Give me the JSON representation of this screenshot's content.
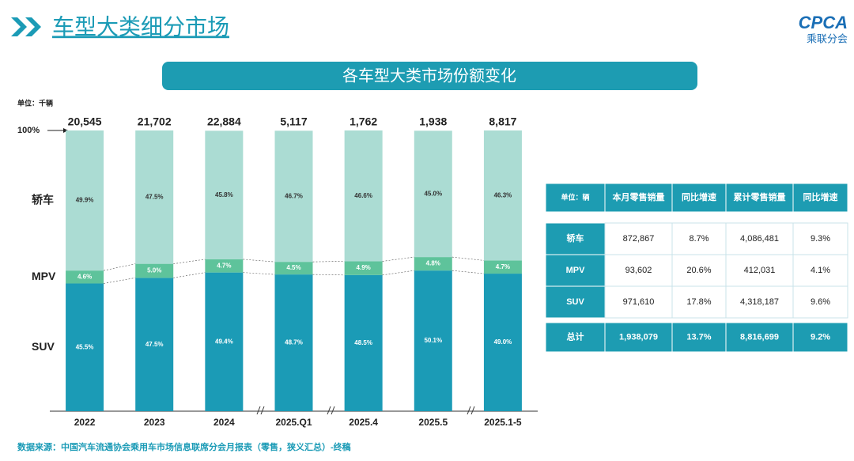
{
  "header": {
    "title": "车型大类细分市场",
    "logo": "CPCA",
    "logo_sub": "乘联分会"
  },
  "chart_data": {
    "type": "stacked-bar",
    "title": "各车型大类市场份额变化",
    "unit": "单位：千辆",
    "categories": [
      "2022",
      "2023",
      "2024",
      "2025.Q1",
      "2025.4",
      "2025.5",
      "2025.1-5"
    ],
    "ylim": [
      0,
      100
    ],
    "yticks": [
      {
        "value": 100,
        "label": "100%"
      }
    ],
    "totals": {
      "values": [
        20545,
        21702,
        22884,
        5117,
        1762,
        1938,
        8817
      ],
      "value_labels": [
        "20,545",
        "21,702",
        "22,884",
        "5,117",
        "1,762",
        "1,938",
        "8,817"
      ]
    },
    "series": [
      {
        "name": "SUV",
        "color": "#1b9bb6",
        "values": [
          45.5,
          47.5,
          49.4,
          48.7,
          48.5,
          50.1,
          49.0
        ],
        "value_labels": [
          "45.5%",
          "47.5%",
          "49.4%",
          "48.7%",
          "48.5%",
          "50.1%",
          "49.0%"
        ]
      },
      {
        "name": "MPV",
        "color": "#5ec39b",
        "values": [
          4.6,
          5.0,
          4.7,
          4.5,
          4.9,
          4.8,
          4.7
        ],
        "value_labels": [
          "4.6%",
          "5.0%",
          "4.7%",
          "4.5%",
          "4.9%",
          "4.8%",
          "4.7%"
        ]
      },
      {
        "name": "轿车",
        "color": "#abdcd3",
        "values": [
          49.9,
          47.5,
          45.8,
          46.7,
          46.6,
          45.0,
          46.3
        ],
        "value_labels": [
          "49.9%",
          "47.5%",
          "45.8%",
          "46.7%",
          "46.6%",
          "45.0%",
          "46.3%"
        ]
      }
    ]
  },
  "table": {
    "header": [
      "单位：辆",
      "本月零售销量",
      "同比增速",
      "累计零售销量",
      "同比增速"
    ],
    "rows": [
      [
        "轿车",
        "872,867",
        "8.7%",
        "4,086,481",
        "9.3%"
      ],
      [
        "MPV",
        "93,602",
        "20.6%",
        "412,031",
        "4.1%"
      ],
      [
        "SUV",
        "971,610",
        "17.8%",
        "4,318,187",
        "9.6%"
      ],
      [
        "总计",
        "1,938,079",
        "13.7%",
        "8,816,699",
        "9.2%"
      ]
    ]
  },
  "source": "数据来源：中国汽车流通协会乘用车市场信息联席分会月报表（零售，狭义汇总）-终稿"
}
